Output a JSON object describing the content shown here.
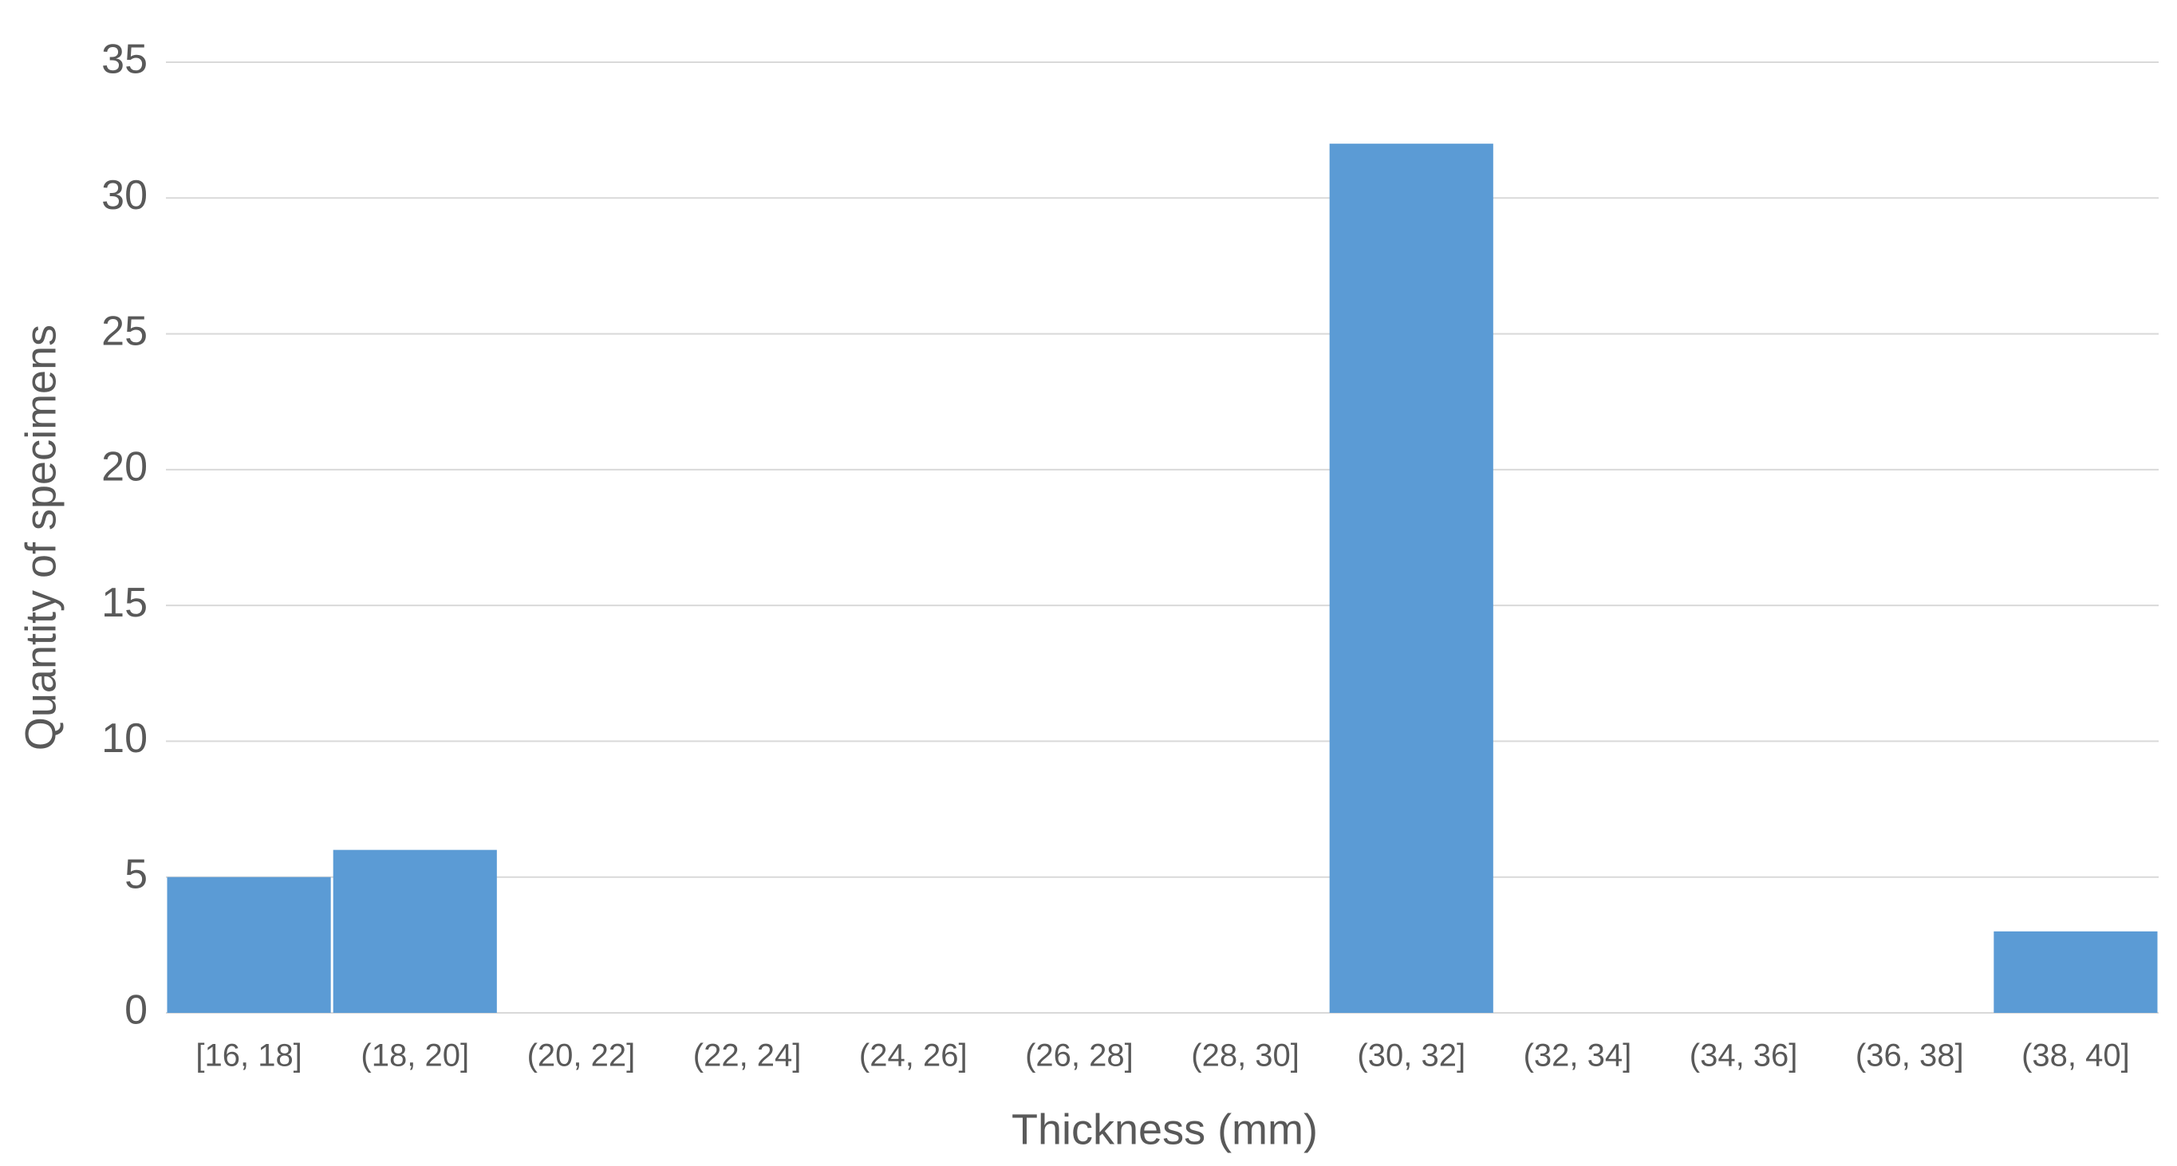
{
  "chart_data": {
    "type": "bar",
    "x_label": "Thickness (mm)",
    "y_label": "Quantity of specimens",
    "categories": [
      "[16, 18]",
      "(18, 20]",
      "(20, 22]",
      "(22, 24]",
      "(24, 26]",
      "(26, 28]",
      "(28, 30]",
      "(30, 32]",
      "(32, 34]",
      "(34, 36]",
      "(36, 38]",
      "(38, 40]"
    ],
    "values": [
      5,
      6,
      0,
      0,
      0,
      0,
      0,
      32,
      0,
      0,
      0,
      3
    ],
    "color": "#5b9bd5",
    "ylim": [
      0,
      35
    ],
    "yticks": [
      0,
      5,
      10,
      15,
      20,
      25,
      30,
      35
    ],
    "grid": true
  }
}
